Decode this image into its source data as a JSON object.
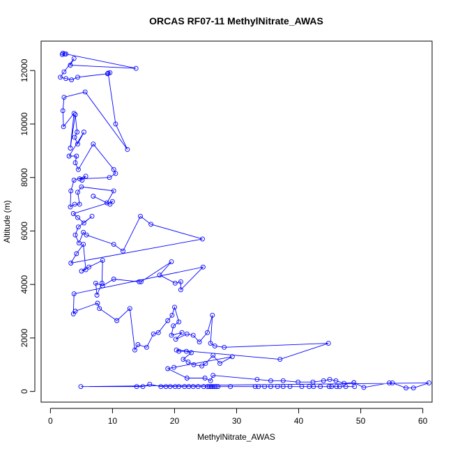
{
  "chart_data": {
    "type": "line",
    "title": "ORCAS RF07-11 MethylNitrate_AWAS",
    "xlabel": "MethylNitrate_AWAS",
    "ylabel": "Altitude (m)",
    "xlim": [
      -1.5,
      61.5
    ],
    "ylim": [
      -400,
      13100
    ],
    "x_ticks": [
      0,
      10,
      20,
      30,
      40,
      50,
      60
    ],
    "y_ticks": [
      0,
      2000,
      4000,
      6000,
      8000,
      10000,
      12000
    ],
    "grid": false,
    "color": "#0000FF",
    "marker": "open-circle",
    "series": [
      {
        "values": [
          [
            2.0,
            12650
          ],
          [
            2.3,
            12620
          ],
          [
            1.9,
            12600
          ],
          [
            2.5,
            12620
          ],
          [
            13.8,
            12080
          ],
          [
            3.2,
            12200
          ],
          [
            3.8,
            12450
          ],
          [
            2.2,
            11950
          ],
          [
            1.6,
            11750
          ],
          [
            2.5,
            11700
          ],
          [
            3.4,
            11650
          ],
          [
            4.4,
            11750
          ],
          [
            9.2,
            11880
          ],
          [
            9.6,
            11920
          ],
          [
            9.3,
            11900
          ],
          [
            10.5,
            10000
          ],
          [
            12.4,
            9050
          ],
          [
            5.6,
            11200
          ],
          [
            2.2,
            11000
          ],
          [
            2.0,
            10500
          ],
          [
            2.1,
            9900
          ],
          [
            3.8,
            10400
          ],
          [
            3.2,
            9100
          ],
          [
            4.0,
            10350
          ],
          [
            4.3,
            9700
          ],
          [
            3.9,
            9500
          ],
          [
            4.4,
            9250
          ],
          [
            5.4,
            9700
          ],
          [
            3.0,
            8800
          ],
          [
            4.2,
            8800
          ],
          [
            4.0,
            8550
          ],
          [
            4.5,
            8300
          ],
          [
            6.9,
            9250
          ],
          [
            10.2,
            8300
          ],
          [
            10.5,
            8150
          ],
          [
            9.5,
            8000
          ],
          [
            4.7,
            7950
          ],
          [
            5.1,
            7900
          ],
          [
            5.7,
            8050
          ],
          [
            3.8,
            7900
          ],
          [
            3.3,
            7500
          ],
          [
            3.2,
            6900
          ],
          [
            3.9,
            7000
          ],
          [
            4.7,
            7000
          ],
          [
            4.4,
            7450
          ],
          [
            5.0,
            7650
          ],
          [
            10.2,
            7500
          ],
          [
            9.1,
            7050
          ],
          [
            6.9,
            7300
          ],
          [
            9.6,
            7000
          ],
          [
            10.0,
            7100
          ],
          [
            3.7,
            6650
          ],
          [
            4.4,
            6500
          ],
          [
            5.4,
            6300
          ],
          [
            6.7,
            6550
          ],
          [
            4.5,
            6150
          ],
          [
            4.0,
            5850
          ],
          [
            4.6,
            5550
          ],
          [
            5.3,
            5950
          ],
          [
            5.8,
            5850
          ],
          [
            10.2,
            5500
          ],
          [
            11.7,
            5250
          ],
          [
            14.5,
            6550
          ],
          [
            16.2,
            6250
          ],
          [
            24.5,
            5700
          ],
          [
            3.3,
            4800
          ],
          [
            4.2,
            5150
          ],
          [
            5.3,
            5500
          ],
          [
            5.7,
            4550
          ],
          [
            5.0,
            4500
          ],
          [
            6.2,
            4650
          ],
          [
            8.4,
            4900
          ],
          [
            8.3,
            4050
          ],
          [
            7.5,
            3600
          ],
          [
            7.3,
            4050
          ],
          [
            8.4,
            3950
          ],
          [
            10.2,
            4200
          ],
          [
            14.3,
            4100
          ],
          [
            14.6,
            4100
          ],
          [
            19.5,
            4850
          ],
          [
            17.6,
            4350
          ],
          [
            20.1,
            4050
          ],
          [
            21.0,
            4100
          ],
          [
            21.0,
            3800
          ],
          [
            24.6,
            4650
          ],
          [
            3.8,
            3650
          ],
          [
            3.7,
            2900
          ],
          [
            4.0,
            3000
          ],
          [
            7.6,
            3300
          ],
          [
            7.9,
            3100
          ],
          [
            10.7,
            2650
          ],
          [
            12.8,
            3100
          ],
          [
            13.6,
            1550
          ],
          [
            14.1,
            1750
          ],
          [
            15.5,
            1650
          ],
          [
            16.6,
            2150
          ],
          [
            17.4,
            2200
          ],
          [
            18.9,
            2650
          ],
          [
            19.6,
            2850
          ],
          [
            20.0,
            3150
          ],
          [
            20.7,
            2600
          ],
          [
            19.8,
            2450
          ],
          [
            19.5,
            2100
          ],
          [
            21.2,
            2200
          ],
          [
            20.2,
            1950
          ],
          [
            22.0,
            2150
          ],
          [
            23.0,
            2100
          ],
          [
            24.0,
            1850
          ],
          [
            25.3,
            2200
          ],
          [
            26.1,
            2850
          ],
          [
            25.8,
            1800
          ],
          [
            26.5,
            1700
          ],
          [
            28.0,
            1650
          ],
          [
            44.8,
            1800
          ],
          [
            37.0,
            1200
          ],
          [
            20.3,
            1550
          ],
          [
            20.7,
            1500
          ],
          [
            21.9,
            1500
          ],
          [
            22.7,
            1450
          ],
          [
            21.4,
            1200
          ],
          [
            22.2,
            1100
          ],
          [
            23.1,
            1000
          ],
          [
            24.4,
            950
          ],
          [
            25.0,
            1050
          ],
          [
            26.2,
            1350
          ],
          [
            27.3,
            1050
          ],
          [
            29.3,
            1300
          ],
          [
            19.9,
            900
          ],
          [
            18.9,
            850
          ],
          [
            22.0,
            500
          ],
          [
            24.9,
            500
          ],
          [
            25.8,
            400
          ],
          [
            26.2,
            600
          ],
          [
            33.3,
            450
          ],
          [
            35.5,
            400
          ],
          [
            37.5,
            400
          ],
          [
            39.9,
            350
          ],
          [
            42.3,
            350
          ],
          [
            44.0,
            400
          ],
          [
            45.0,
            450
          ],
          [
            46.0,
            400
          ],
          [
            47.3,
            300
          ],
          [
            48.9,
            330
          ],
          [
            50.5,
            150
          ],
          [
            54.6,
            320
          ],
          [
            55.1,
            320
          ],
          [
            57.3,
            130
          ],
          [
            58.5,
            130
          ],
          [
            61.0,
            320
          ],
          [
            4.9,
            180
          ],
          [
            13.9,
            180
          ],
          [
            14.9,
            180
          ],
          [
            16.0,
            270
          ],
          [
            17.8,
            180
          ],
          [
            18.6,
            180
          ],
          [
            19.3,
            180
          ],
          [
            20.1,
            180
          ],
          [
            20.7,
            180
          ],
          [
            21.6,
            180
          ],
          [
            22.3,
            180
          ],
          [
            23.0,
            180
          ],
          [
            23.8,
            180
          ],
          [
            24.7,
            180
          ],
          [
            25.3,
            180
          ],
          [
            25.6,
            180
          ],
          [
            25.9,
            180
          ],
          [
            26.1,
            180
          ],
          [
            26.4,
            180
          ],
          [
            26.7,
            180
          ],
          [
            27.0,
            180
          ],
          [
            29.0,
            180
          ],
          [
            33.0,
            180
          ],
          [
            33.5,
            180
          ],
          [
            34.5,
            180
          ],
          [
            35.5,
            180
          ],
          [
            36.6,
            180
          ],
          [
            37.5,
            180
          ],
          [
            38.6,
            180
          ],
          [
            40.5,
            180
          ],
          [
            41.7,
            180
          ],
          [
            42.4,
            180
          ],
          [
            43.5,
            180
          ],
          [
            44.9,
            180
          ],
          [
            45.3,
            180
          ],
          [
            46.1,
            180
          ],
          [
            46.6,
            180
          ],
          [
            47.6,
            180
          ],
          [
            49.0,
            180
          ]
        ]
      }
    ]
  }
}
